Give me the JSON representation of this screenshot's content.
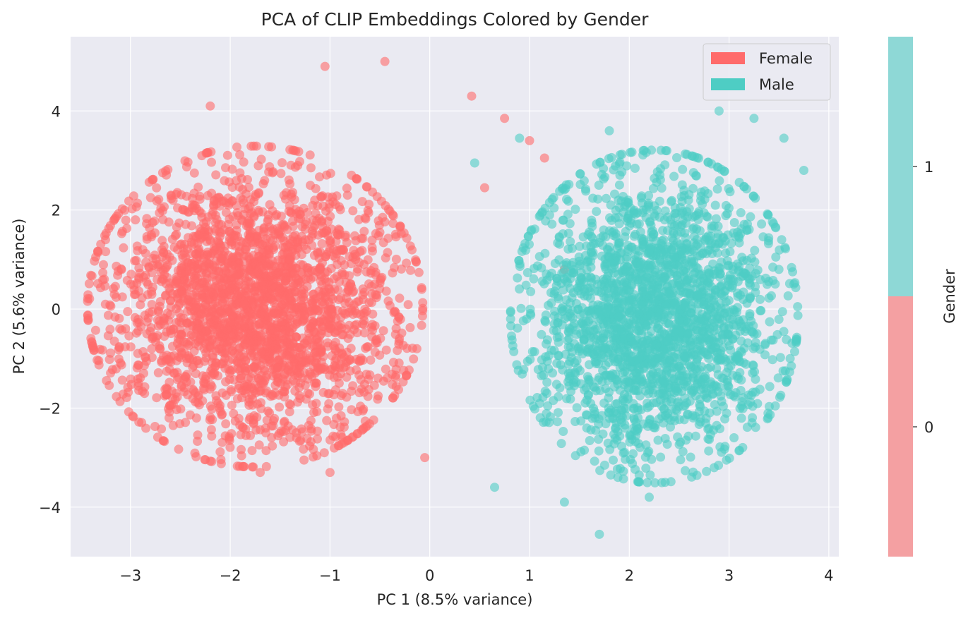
{
  "chart_data": {
    "type": "scatter",
    "title": "PCA of CLIP Embeddings Colored by Gender",
    "xlabel": "PC 1 (8.5% variance)",
    "ylabel": "PC 2 (5.6% variance)",
    "xlim": [
      -3.6,
      4.1
    ],
    "ylim": [
      -5.0,
      5.5
    ],
    "xticks": [
      -3,
      -2,
      -1,
      0,
      1,
      2,
      3,
      4
    ],
    "yticks": [
      -4,
      -2,
      0,
      2,
      4
    ],
    "xtick_labels": [
      "−3",
      "−2",
      "−1",
      "0",
      "1",
      "2",
      "3",
      "4"
    ],
    "ytick_labels": [
      "−4",
      "−2",
      "0",
      "2",
      "4"
    ],
    "grid": true,
    "legend_position": "top-right",
    "series": [
      {
        "name": "Female",
        "color": "#ff6b6b",
        "cluster": {
          "mean": [
            -1.75,
            0.05
          ],
          "std": [
            0.7,
            1.35
          ],
          "count": 2600
        },
        "notable_points": [
          [
            -3.25,
            1.4
          ],
          [
            -1.05,
            4.9
          ],
          [
            -0.45,
            5.0
          ],
          [
            0.42,
            4.3
          ],
          [
            -2.2,
            4.1
          ],
          [
            -1.7,
            -3.3
          ],
          [
            -1.0,
            -3.3
          ],
          [
            -0.05,
            -3.0
          ],
          [
            0.75,
            3.85
          ],
          [
            1.0,
            3.4
          ],
          [
            1.15,
            3.05
          ],
          [
            0.55,
            2.45
          ],
          [
            1.35,
            0.8
          ]
        ]
      },
      {
        "name": "Male",
        "color": "#4ecdc4",
        "cluster": {
          "mean": [
            2.25,
            -0.15
          ],
          "std": [
            0.6,
            1.4
          ],
          "count": 2300
        },
        "notable_points": [
          [
            1.7,
            -4.55
          ],
          [
            0.65,
            -3.6
          ],
          [
            1.35,
            -3.9
          ],
          [
            2.2,
            -3.8
          ],
          [
            3.55,
            3.45
          ],
          [
            2.9,
            4.0
          ],
          [
            3.25,
            3.85
          ],
          [
            3.75,
            2.8
          ],
          [
            3.5,
            0.8
          ],
          [
            3.05,
            -2.6
          ],
          [
            1.8,
            3.6
          ],
          [
            0.45,
            2.95
          ],
          [
            0.9,
            3.45
          ]
        ]
      }
    ],
    "colorbar": {
      "label": "Gender",
      "ticks": [
        "1",
        "0"
      ],
      "segments": [
        {
          "value": "1",
          "color": "#8ed8d6"
        },
        {
          "value": "0",
          "color": "#f4a0a2"
        }
      ]
    }
  }
}
